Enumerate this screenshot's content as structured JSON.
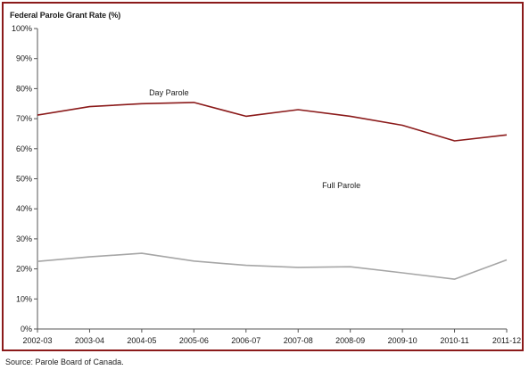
{
  "chart_data": {
    "type": "line",
    "title": "Federal Parole Grant Rate (%)",
    "categories": [
      "2002-03",
      "2003-04",
      "2004-05",
      "2005-06",
      "2006-07",
      "2007-08",
      "2008-09",
      "2009-10",
      "2010-11",
      "2011-12"
    ],
    "series": [
      {
        "name": "Day Parole",
        "color": "#8b1a1a",
        "values": [
          71.2,
          74.0,
          75.0,
          75.4,
          70.8,
          73.0,
          70.8,
          67.8,
          62.6,
          64.6
        ]
      },
      {
        "name": "Full Parole",
        "color": "#a6a6a6",
        "values": [
          22.5,
          24.0,
          25.2,
          22.6,
          21.2,
          20.5,
          20.7,
          18.7,
          16.6,
          23.0
        ]
      }
    ],
    "ylim": [
      0,
      100
    ],
    "yticks": [
      "0%",
      "10%",
      "20%",
      "30%",
      "40%",
      "50%",
      "60%",
      "70%",
      "80%",
      "90%",
      "100%"
    ],
    "xlabel": "",
    "ylabel": "",
    "grid": false,
    "legend": "inline labels"
  },
  "source": "Source:  Parole Board of Canada."
}
